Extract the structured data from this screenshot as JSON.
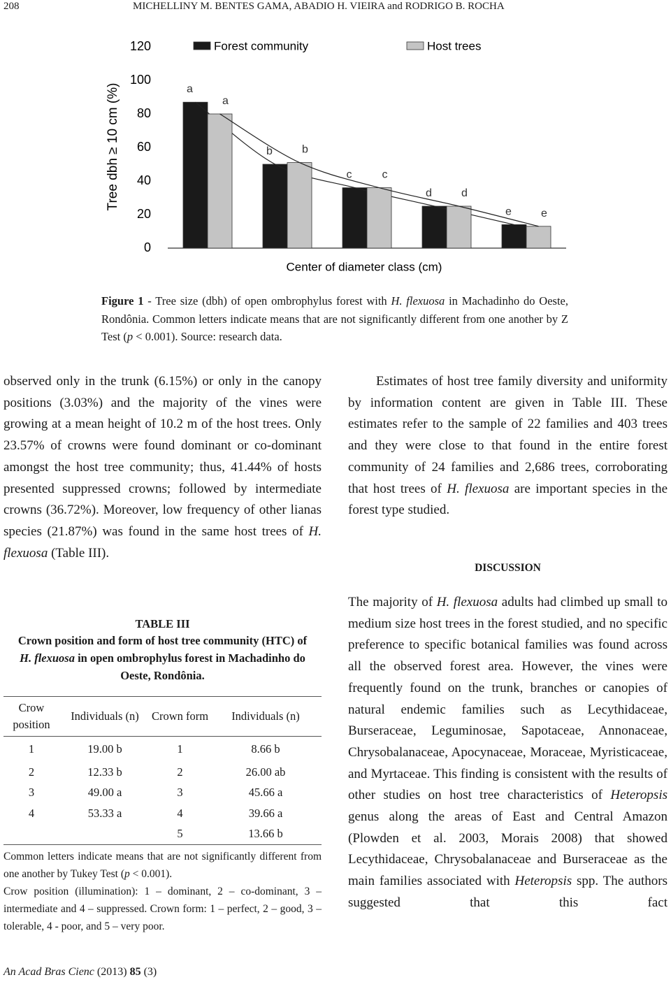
{
  "header": {
    "page_number": "208",
    "authors": "MICHELLINY M. BENTES GAMA, ABADIO H. VIEIRA and RODRIGO B. ROCHA"
  },
  "chart_data": {
    "type": "bar",
    "y_label": "Tree dbh ≥ 10 cm (%)",
    "x_label": "Center of diameter class (cm)",
    "categories": [
      null,
      null,
      null,
      null,
      null
    ],
    "series": [
      {
        "name": "Forest community",
        "color": "#1a1a1a",
        "values": [
          87,
          50,
          36,
          25,
          14
        ],
        "letters": [
          "a",
          "b",
          "c",
          "d",
          "e"
        ]
      },
      {
        "name": "Host trees",
        "color": "#c4c4c4",
        "values": [
          80,
          51,
          36,
          25,
          13
        ],
        "letters": [
          "a",
          "b",
          "c",
          "d",
          "e"
        ]
      }
    ],
    "ylim": [
      0,
      120
    ],
    "yticks": [
      0,
      20,
      40,
      60,
      80,
      100,
      120
    ],
    "legend": "top",
    "trend_lines": true
  },
  "caption": [
    {
      "text": "Figure 1",
      "style": "bold"
    },
    {
      "text": " - Tree size (dbh) of open ombrophylus forest with "
    },
    {
      "text": "H. flexuosa",
      "style": "italic"
    },
    {
      "text": " in Machadinho do Oeste, Rondônia. Common letters indicate means that are not significantly different from one another by Z Test ("
    },
    {
      "text": "p",
      "style": "italic"
    },
    {
      "text": " < 0.001). Source: research data."
    }
  ],
  "left_paragraph": [
    {
      "text": "observed only in the trunk (6.15%) or only in the canopy positions (3.03%) and the majority of the vines were growing at a mean height of 10.2 m of the host trees. Only 23.57% of crowns were found dominant or co-dominant amongst the host tree community; thus, 41.44% of hosts presented suppressed crowns; followed by intermediate crowns (36.72%). Moreover, low frequency of other lianas species (21.87%) was found in the same host trees of "
    },
    {
      "text": "H. flexuosa",
      "style": "italic"
    },
    {
      "text": " (Table III)."
    }
  ],
  "table": {
    "label": "TABLE III",
    "caption": [
      {
        "text": "Crown position and form of host tree community (HTC) of "
      },
      {
        "text": "H. flexuosa",
        "style": "italic"
      },
      {
        "text": " in open ombrophylus forest in Machadinho do Oeste, Rondônia."
      }
    ],
    "columns": [
      "Crow position",
      "Individuals (n)",
      "Crown form",
      "Individuals (n)"
    ],
    "rows": [
      [
        "1",
        "19.00 b",
        "1",
        "8.66 b"
      ],
      [
        "2",
        "12.33 b",
        "2",
        "26.00 ab"
      ],
      [
        "3",
        "49.00 a",
        "3",
        "45.66 a"
      ],
      [
        "4",
        "53.33 a",
        "4",
        "39.66 a"
      ],
      [
        null,
        null,
        "5",
        "13.66 b"
      ]
    ],
    "notes": [
      [
        {
          "text": "Common letters indicate means that are not significantly different from one another by Tukey Test ("
        },
        {
          "text": "p",
          "style": "italic"
        },
        {
          "text": " < 0.001)."
        }
      ],
      [
        {
          "text": "Crow position (illumination): 1 – dominant, 2 – co-dominant, 3 – intermediate and 4 – suppressed. Crown form: 1 – perfect, 2 – good, 3 – tolerable, 4 - poor, and 5 – very poor."
        }
      ]
    ]
  },
  "right_paragraph_1": [
    {
      "text": "Estimates of host tree family diversity and uniformity by information content are given in Table III. These estimates refer to the sample of 22 families and 403 trees and they were close to that found in the entire forest community of 24 families and 2,686 trees, corroborating that host trees of "
    },
    {
      "text": "H. flexuosa",
      "style": "italic"
    },
    {
      "text": " are important species in the forest type studied."
    }
  ],
  "section_heading": "DISCUSSION",
  "right_paragraph_2": [
    {
      "text": "The majority of "
    },
    {
      "text": "H. flexuosa",
      "style": "italic"
    },
    {
      "text": " adults had climbed up small to medium size host trees in the forest studied, and no specific preference to specific botanical families was found across all the observed forest area. However, the vines were frequently found on the trunk, branches or canopies of natural endemic families such as Lecythidaceae, Burseraceae, Leguminosae, Sapotaceae, Annonaceae, Chrysobalanaceae, Apocynaceae, Moraceae, Myristicaceae, and Myrtaceae. This finding is consistent with the results of other studies on host tree characteristics of "
    },
    {
      "text": "Heteropsis",
      "style": "italic"
    },
    {
      "text": " genus along the areas of East and Central Amazon (Plowden et al. 2003, Morais 2008) that showed Lecythidaceae, Chrysobalanaceae and Burseraceae as the main families associated with "
    },
    {
      "text": "Heteropsis",
      "style": "italic"
    },
    {
      "text": " spp. The authors suggested that this fact"
    }
  ],
  "footer": [
    {
      "text": "An Acad Bras Cienc",
      "style": "italic"
    },
    {
      "text": " (2013) "
    },
    {
      "text": "85",
      "style": "bold"
    },
    {
      "text": " (3)"
    }
  ]
}
